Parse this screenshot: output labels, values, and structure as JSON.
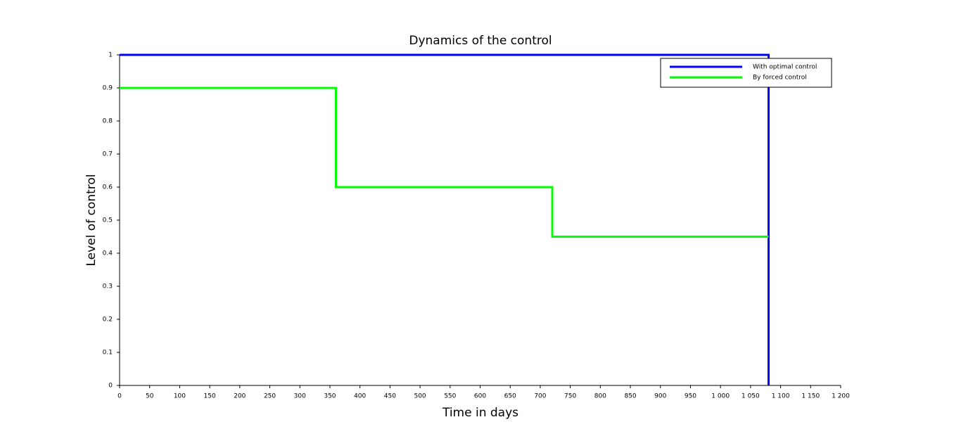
{
  "chart_data": {
    "type": "line",
    "title": "Dynamics of the control",
    "x_label": "Time in days",
    "y_label": "Level of control",
    "series": [
      {
        "name": "With optimal control",
        "color": "#0000ff",
        "x": [
          0,
          1080,
          1080
        ],
        "values": [
          1,
          1,
          0
        ]
      },
      {
        "name": "By forced control",
        "color": "#00ff00",
        "x": [
          0,
          360,
          360,
          720,
          720,
          1080
        ],
        "values": [
          0.9,
          0.9,
          0.6,
          0.6,
          0.45,
          0.45
        ]
      }
    ],
    "xlim": [
      0,
      1200
    ],
    "xticks": [
      0,
      50,
      100,
      150,
      200,
      250,
      300,
      350,
      400,
      450,
      500,
      550,
      600,
      650,
      700,
      750,
      800,
      850,
      900,
      950,
      {
        "value": 1000,
        "label": "1 000"
      },
      {
        "value": 1050,
        "label": "1 050"
      },
      {
        "value": 1100,
        "label": "1 100"
      },
      {
        "value": 1150,
        "label": "1 150"
      },
      {
        "value": 1200,
        "label": "1 200"
      }
    ],
    "ylim": [
      0,
      1
    ],
    "yticks": [
      0,
      0.1,
      0.2,
      0.3,
      0.4,
      0.5,
      0.6,
      0.7,
      0.8,
      0.9,
      1
    ],
    "legend": "upper right",
    "grid": false
  }
}
